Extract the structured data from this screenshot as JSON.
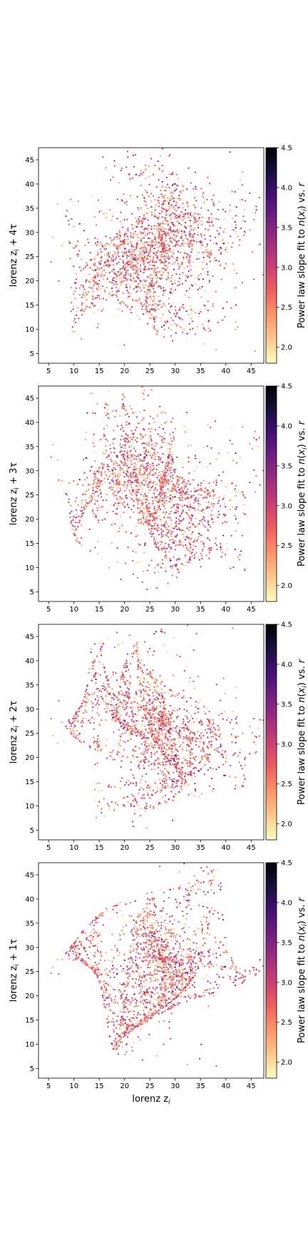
{
  "figure": {
    "colormap": "magma_r",
    "colormap_stops": [
      "#fcfdbf",
      "#fec98d",
      "#fd9668",
      "#f1605d",
      "#cd4071",
      "#9e2f7f",
      "#721f81",
      "#440f76",
      "#180f3d",
      "#000004"
    ],
    "colorbar_label": "Power law slope fit to n(x_i) vs. r",
    "colorbar_range": [
      1.8,
      4.5
    ],
    "colorbar_ticks": [
      "2.0",
      "2.5",
      "3.0",
      "3.5",
      "4.0",
      "4.5"
    ],
    "x_ticks": [
      "5",
      "10",
      "15",
      "20",
      "25",
      "30",
      "35",
      "40",
      "45"
    ],
    "y_ticks": [
      "5",
      "10",
      "15",
      "20",
      "25",
      "30",
      "35",
      "40",
      "45"
    ],
    "x_label": "lorenz z_i",
    "panels": [
      {
        "ylabel_base": "lorenz z",
        "ylabel_sub": "i",
        "ylabel_suffix": " + 4τ"
      },
      {
        "ylabel_base": "lorenz z",
        "ylabel_sub": "i",
        "ylabel_suffix": " + 3τ"
      },
      {
        "ylabel_base": "lorenz z",
        "ylabel_sub": "i",
        "ylabel_suffix": " + 2τ"
      },
      {
        "ylabel_base": "lorenz z",
        "ylabel_sub": "i",
        "ylabel_suffix": " + 1τ"
      }
    ]
  },
  "chart_data": [
    {
      "type": "scatter",
      "x_range": [
        3,
        47.5
      ],
      "y_range": [
        3,
        47.5
      ],
      "c_range": [
        1.8,
        4.5
      ],
      "lag": 4,
      "points": "delay-embedded lorenz z values, several thousand points colored by slope"
    },
    {
      "type": "scatter",
      "x_range": [
        3,
        47.5
      ],
      "y_range": [
        3,
        47.5
      ],
      "c_range": [
        1.8,
        4.5
      ],
      "lag": 3,
      "points": "delay-embedded lorenz z values, several thousand points colored by slope"
    },
    {
      "type": "scatter",
      "x_range": [
        3,
        47.5
      ],
      "y_range": [
        3,
        47.5
      ],
      "c_range": [
        1.8,
        4.5
      ],
      "lag": 2,
      "points": "delay-embedded lorenz z values, several thousand points colored by slope"
    },
    {
      "type": "scatter",
      "x_range": [
        3,
        47.5
      ],
      "y_range": [
        3,
        47.5
      ],
      "c_range": [
        1.8,
        4.5
      ],
      "lag": 1,
      "points": "delay-embedded lorenz z values, several thousand points colored by slope"
    }
  ]
}
